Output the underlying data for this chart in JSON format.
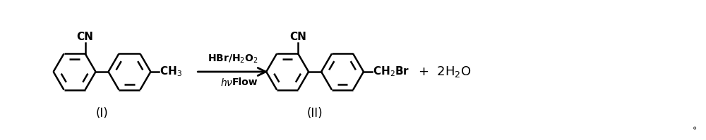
{
  "background_color": "#ffffff",
  "figsize": [
    10.0,
    1.99
  ],
  "dpi": 100,
  "compound_I_label": "(I)",
  "compound_II_label": "(II)",
  "reagent_top": "HBr/H$_2$O$_2$",
  "product_right": "+ 2H$_2$O",
  "ch3_label": "CH$_3$",
  "ch2br_label": "CH$_2$Br",
  "cn_label": "CN",
  "period": "°",
  "line_color": "#000000",
  "text_color": "#000000",
  "arrow_color": "#000000",
  "lw": 1.8
}
